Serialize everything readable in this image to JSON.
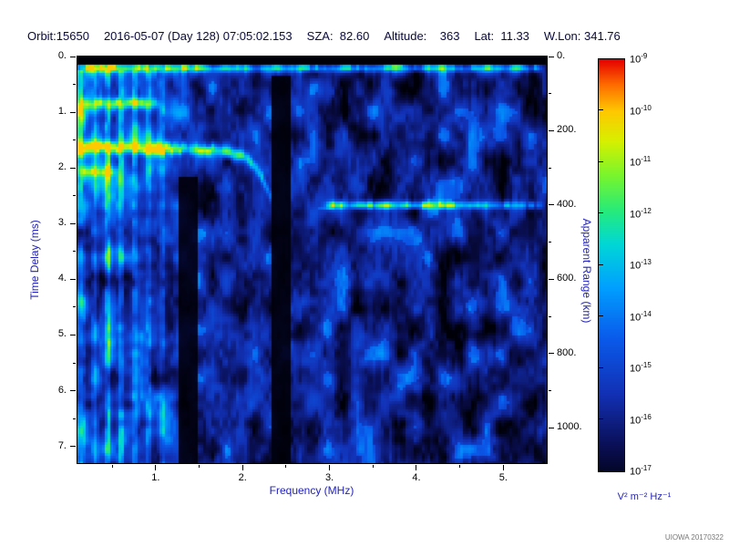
{
  "header": {
    "parts": [
      "Orbit:15650",
      "2016-05-07 (Day 128) 07:05:02.153",
      "SZA:  82.60",
      "Altitude:    363",
      "Lat:  11.33",
      "W.Lon: 341.76"
    ]
  },
  "watermark": "UIOWA 20170322",
  "chart_data": {
    "type": "heatmap",
    "description": "Radar sounder ionogram spectrogram: signal spectral density vs frequency and time delay",
    "xlabel": "Frequency (MHz)",
    "ylabel": "Time Delay (ms)",
    "ylabel_right": "Apparent Range (km)",
    "x_range": [
      0.1,
      5.5
    ],
    "y_range": [
      0,
      7.3
    ],
    "range_km_per_ms": 150,
    "x_ticks": [
      {
        "v": 1,
        "label": "1."
      },
      {
        "v": 2,
        "label": "2."
      },
      {
        "v": 3,
        "label": "3."
      },
      {
        "v": 4,
        "label": "4."
      },
      {
        "v": 5,
        "label": "5."
      }
    ],
    "x_minor_ticks": [
      0.5,
      1.5,
      2.5,
      3.5,
      4.5
    ],
    "y_ticks": [
      {
        "v": 0,
        "label": "0."
      },
      {
        "v": 1,
        "label": "1."
      },
      {
        "v": 2,
        "label": "2."
      },
      {
        "v": 3,
        "label": "3."
      },
      {
        "v": 4,
        "label": "4."
      },
      {
        "v": 5,
        "label": "5."
      },
      {
        "v": 6,
        "label": "6."
      },
      {
        "v": 7,
        "label": "7."
      }
    ],
    "y_minor_ticks": [
      0.5,
      1.5,
      2.5,
      3.5,
      4.5,
      5.5,
      6.5
    ],
    "right_ticks": [
      {
        "v": 0,
        "label": "0."
      },
      {
        "v": 200,
        "label": "200."
      },
      {
        "v": 400,
        "label": "400."
      },
      {
        "v": 600,
        "label": "600."
      },
      {
        "v": 800,
        "label": "800."
      },
      {
        "v": 1000,
        "label": "1000."
      }
    ],
    "right_minor_ticks": [
      100,
      300,
      500,
      700,
      900
    ],
    "colorbar": {
      "base": "10",
      "tick_exponents": [
        "-9",
        "-10",
        "-11",
        "-12",
        "-13",
        "-14",
        "-15",
        "-16",
        "-17"
      ],
      "min": "1e-17",
      "max": "1e-9",
      "units": "V² m⁻² Hz⁻¹",
      "gradient": [
        [
          0.0,
          "#000008"
        ],
        [
          0.1,
          "#0a0f55"
        ],
        [
          0.22,
          "#1230b4"
        ],
        [
          0.35,
          "#0a5aeb"
        ],
        [
          0.47,
          "#00a0ff"
        ],
        [
          0.57,
          "#00d7d7"
        ],
        [
          0.65,
          "#28eb78"
        ],
        [
          0.73,
          "#78f52d"
        ],
        [
          0.81,
          "#d7f000"
        ],
        [
          0.88,
          "#ffc800"
        ],
        [
          0.94,
          "#ff6e00"
        ],
        [
          1.0,
          "#e60000"
        ]
      ]
    },
    "features": [
      {
        "kind": "hline",
        "d": 0.21,
        "f0": 0.1,
        "f1": 5.5,
        "w": 0.07,
        "i": 0.45,
        "slope": -0.045
      },
      {
        "kind": "hline",
        "d": 0.84,
        "f0": 0.1,
        "f1": 1.1,
        "w": 0.1,
        "i": 0.45
      },
      {
        "kind": "hline",
        "d": 2.07,
        "f0": 0.1,
        "f1": 0.6,
        "w": 0.09,
        "i": 0.3
      },
      {
        "kind": "trace",
        "pts": [
          [
            0.1,
            1.62
          ],
          [
            1.3,
            1.65
          ],
          [
            1.8,
            1.7
          ],
          [
            2.05,
            1.82
          ],
          [
            2.2,
            2.1
          ],
          [
            2.32,
            2.5
          ]
        ],
        "w": 0.11,
        "i": 0.48
      },
      {
        "kind": "hline",
        "d": 2.67,
        "f0": 2.88,
        "f1": 5.5,
        "w": 0.07,
        "i": 0.5,
        "peak_f": 3.8
      },
      {
        "kind": "vline",
        "f": 0.14,
        "w": 0.05,
        "i": 0.33
      },
      {
        "kind": "vline",
        "f": 0.3,
        "w": 0.03,
        "i": 0.2
      },
      {
        "kind": "vline",
        "f": 0.45,
        "w": 0.03,
        "i": 0.38
      },
      {
        "kind": "vline",
        "f": 0.6,
        "w": 0.03,
        "i": 0.3
      },
      {
        "kind": "vline",
        "f": 0.76,
        "w": 0.03,
        "i": 0.24
      },
      {
        "kind": "vline",
        "f": 0.92,
        "w": 0.03,
        "i": 0.22
      },
      {
        "kind": "vline",
        "f": 1.08,
        "w": 0.03,
        "i": 0.18
      },
      {
        "kind": "vband",
        "f0": 1.27,
        "f1": 1.47,
        "d0": 2.15,
        "d1": 7.3,
        "mult": 0.12
      },
      {
        "kind": "vband",
        "f0": 2.34,
        "f1": 2.56,
        "d0": 0.32,
        "d1": 7.3,
        "mult": 0.1
      },
      {
        "kind": "blackband",
        "d1": 0.13
      }
    ]
  }
}
